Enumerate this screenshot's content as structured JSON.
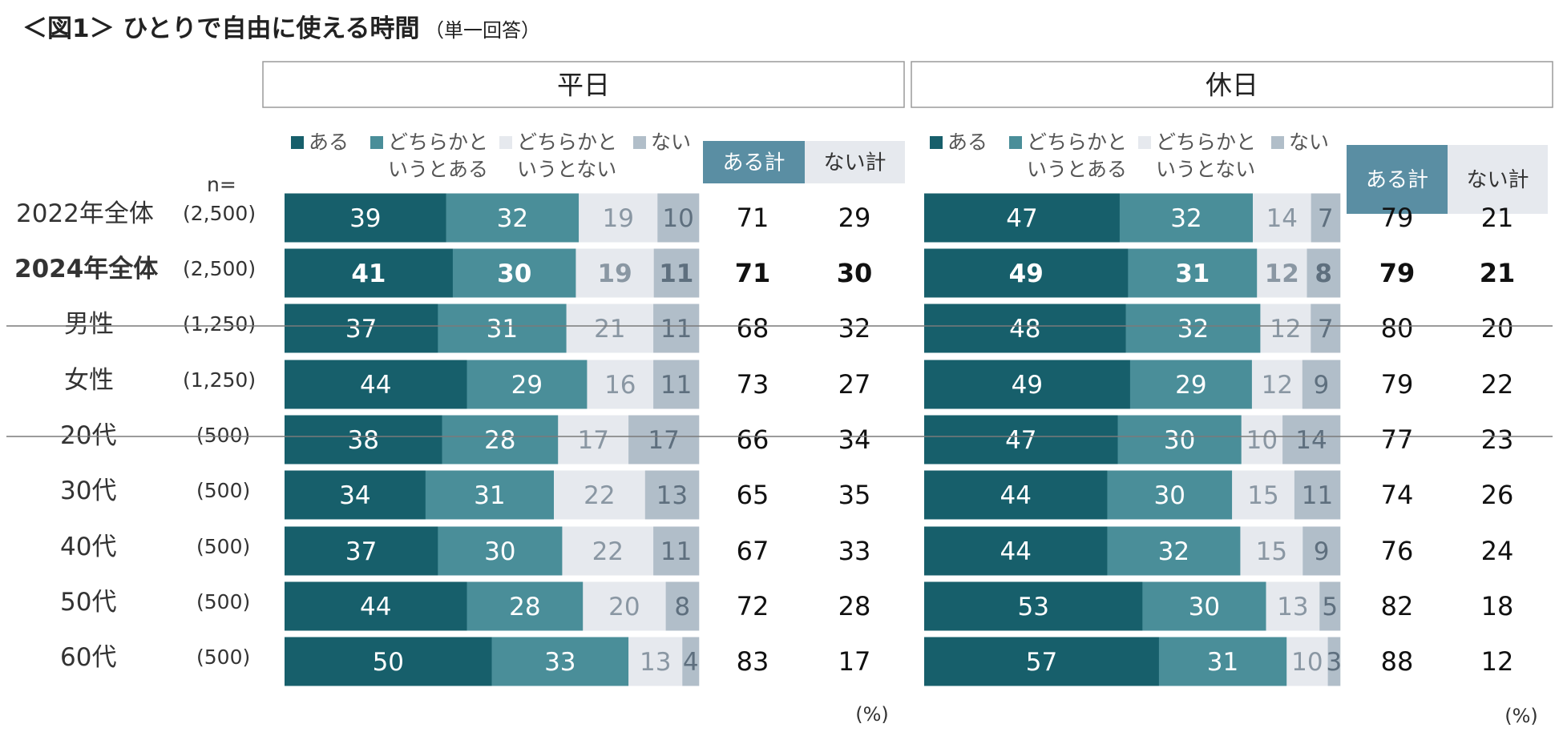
{
  "title": "＜図1＞ ひとりで自由に使える時間",
  "subtitle": "（単一回答）",
  "n_label": "n=",
  "pct_label": "(%)",
  "colors": {
    "s0": "#175f6b",
    "s1": "#4a8e99",
    "s2": "#e6e9ee",
    "s3": "#b1bec9",
    "hdr_aru": "#5a8ea3",
    "hdr_nai": "#e6e9ee"
  },
  "chart_data": {
    "type": "bar",
    "orientation": "horizontal",
    "stacked": true,
    "unit": "%",
    "legend": [
      {
        "name": "ある",
        "lines": [
          "ある"
        ]
      },
      {
        "name": "どちらかというとある",
        "lines": [
          "どちらかと",
          "いうとある"
        ]
      },
      {
        "name": "どちらかというとない",
        "lines": [
          "どちらかと",
          "いうとない"
        ]
      },
      {
        "name": "ない",
        "lines": [
          "ない"
        ]
      }
    ],
    "summary_headers": [
      "ある計",
      "ない計"
    ],
    "categories": [
      {
        "label": "2022年全体",
        "n": "(2,500)",
        "bold": false
      },
      {
        "label": "2024年全体",
        "n": "(2,500)",
        "bold": true
      },
      {
        "label": "男性",
        "n": "(1,250)",
        "bold": false
      },
      {
        "label": "女性",
        "n": "(1,250)",
        "bold": false
      },
      {
        "label": "20代",
        "n": "(500)",
        "bold": false
      },
      {
        "label": "30代",
        "n": "(500)",
        "bold": false
      },
      {
        "label": "40代",
        "n": "(500)",
        "bold": false
      },
      {
        "label": "50代",
        "n": "(500)",
        "bold": false
      },
      {
        "label": "60代",
        "n": "(500)",
        "bold": false
      }
    ],
    "panels": [
      {
        "title": "平日",
        "values": [
          [
            39,
            32,
            19,
            10
          ],
          [
            41,
            30,
            19,
            11
          ],
          [
            37,
            31,
            21,
            11
          ],
          [
            44,
            29,
            16,
            11
          ],
          [
            38,
            28,
            17,
            17
          ],
          [
            34,
            31,
            22,
            13
          ],
          [
            37,
            30,
            22,
            11
          ],
          [
            44,
            28,
            20,
            8
          ],
          [
            50,
            33,
            13,
            4
          ]
        ],
        "aru_total": [
          71,
          71,
          68,
          73,
          66,
          65,
          67,
          72,
          83
        ],
        "nai_total": [
          29,
          30,
          32,
          27,
          34,
          35,
          33,
          28,
          17
        ]
      },
      {
        "title": "休日",
        "values": [
          [
            47,
            32,
            14,
            7
          ],
          [
            49,
            31,
            12,
            8
          ],
          [
            48,
            32,
            12,
            7
          ],
          [
            49,
            29,
            12,
            9
          ],
          [
            47,
            30,
            10,
            14
          ],
          [
            44,
            30,
            15,
            11
          ],
          [
            44,
            32,
            15,
            9
          ],
          [
            53,
            30,
            13,
            5
          ],
          [
            57,
            31,
            10,
            3
          ]
        ],
        "aru_total": [
          79,
          79,
          80,
          79,
          77,
          74,
          76,
          82,
          88
        ],
        "nai_total": [
          21,
          21,
          20,
          22,
          23,
          26,
          24,
          18,
          12
        ]
      }
    ]
  }
}
